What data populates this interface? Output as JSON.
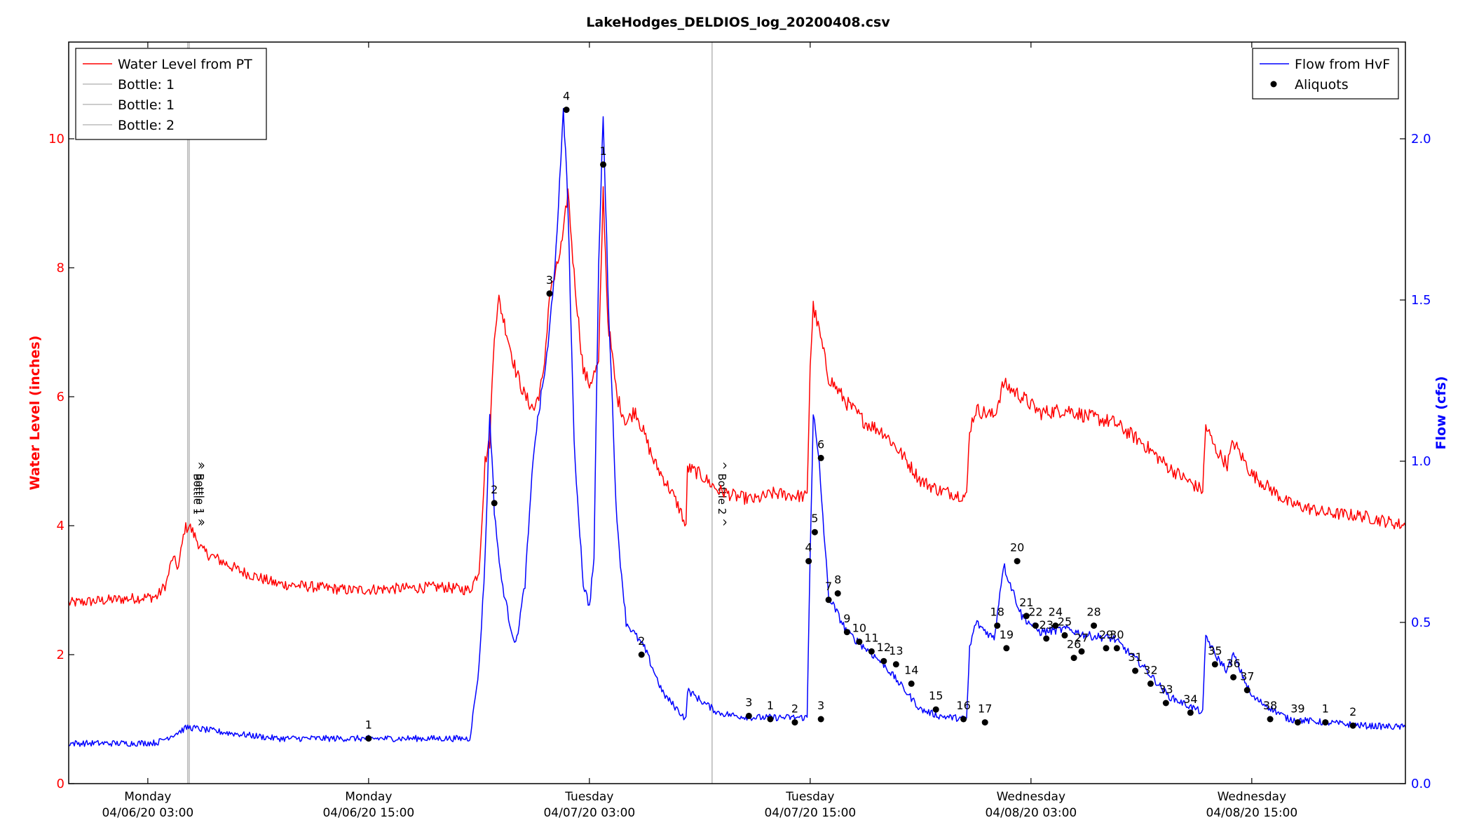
{
  "chart_data": {
    "type": "line",
    "title": "LakeHodges_DELDIOS_log_20200408.csv",
    "x_axis": {
      "range": [
        "04/05/20 22:42",
        "04/08/20 23:21"
      ],
      "ticks": [
        {
          "t": "04/06/20 03:00",
          "day": "Monday",
          "date": "04/06/20 03:00"
        },
        {
          "t": "04/06/20 15:00",
          "day": "Monday",
          "date": "04/06/20 15:00"
        },
        {
          "t": "04/07/20 03:00",
          "day": "Tuesday",
          "date": "04/07/20 03:00"
        },
        {
          "t": "04/07/20 15:00",
          "day": "Tuesday",
          "date": "04/07/20 15:00"
        },
        {
          "t": "04/08/20 03:00",
          "day": "Wednesday",
          "date": "04/08/20 03:00"
        },
        {
          "t": "04/08/20 15:00",
          "day": "Wednesday",
          "date": "04/08/20 15:00"
        }
      ]
    },
    "y_left": {
      "label": "Water Level (inches)",
      "ylim": [
        0,
        11.5
      ],
      "ticks": [
        0,
        2,
        4,
        6,
        8,
        10
      ],
      "color": "#ff0000"
    },
    "y_right": {
      "label": "Flow (cfs)",
      "ylim": [
        0,
        2.3
      ],
      "ticks": [
        "0.0",
        "0.5",
        "1.0",
        "1.5",
        "2.0"
      ],
      "color": "#0000ff"
    },
    "grid": false,
    "legend_left": {
      "placement": "top-left",
      "entries": [
        {
          "label": "Water Level from PT",
          "color": "#ff0000",
          "kind": "line"
        },
        {
          "label": "Bottle: 1",
          "color": "#bbbbbb",
          "kind": "line"
        },
        {
          "label": "Bottle: 1",
          "color": "#bbbbbb",
          "kind": "line"
        },
        {
          "label": "Bottle: 2",
          "color": "#bbbbbb",
          "kind": "line"
        }
      ]
    },
    "legend_right": {
      "placement": "top-right",
      "entries": [
        {
          "label": "Flow from HvF",
          "color": "#0000ff",
          "kind": "line"
        },
        {
          "label": "Aliquots",
          "color": "#000000",
          "kind": "marker"
        }
      ]
    },
    "bottle_lines": [
      {
        "t": "04/06/20 05:10",
        "text": "^ Bottle 1 ^"
      },
      {
        "t": "04/06/20 05:15",
        "text": "^ Bottle 1 ^"
      },
      {
        "t": "04/07/20 09:40",
        "text": "^ Bottle 2 ^"
      }
    ],
    "series": [
      {
        "name": "Water Level from PT",
        "axis": "left",
        "color": "#ff0000",
        "noise": 0.09,
        "points": [
          [
            "04/05/20 22:42",
            2.8
          ],
          [
            "04/06/20 01:00",
            2.85
          ],
          [
            "04/06/20 03:30",
            2.9
          ],
          [
            "04/06/20 04:00",
            3.1
          ],
          [
            "04/06/20 04:20",
            3.5
          ],
          [
            "04/06/20 04:40",
            3.35
          ],
          [
            "04/06/20 05:00",
            3.95
          ],
          [
            "04/06/20 05:15",
            4.0
          ],
          [
            "04/06/20 06:00",
            3.6
          ],
          [
            "04/06/20 08:00",
            3.3
          ],
          [
            "04/06/20 10:00",
            3.1
          ],
          [
            "04/06/20 14:00",
            3.0
          ],
          [
            "04/06/20 19:00",
            3.05
          ],
          [
            "04/06/20 20:30",
            3.0
          ],
          [
            "04/06/20 21:00",
            3.3
          ],
          [
            "04/06/20 21:20",
            5.0
          ],
          [
            "04/06/20 21:35",
            5.3
          ],
          [
            "04/06/20 21:50",
            7.0
          ],
          [
            "04/06/20 22:05",
            7.5
          ],
          [
            "04/06/20 22:30",
            7.0
          ],
          [
            "04/06/20 23:00",
            6.4
          ],
          [
            "04/06/20 23:30",
            6.0
          ],
          [
            "04/07/20 00:00",
            5.8
          ],
          [
            "04/07/20 00:30",
            6.3
          ],
          [
            "04/07/20 00:50",
            7.6
          ],
          [
            "04/07/20 01:10",
            7.9
          ],
          [
            "04/07/20 01:35",
            8.5
          ],
          [
            "04/07/20 01:50",
            9.2
          ],
          [
            "04/07/20 02:10",
            7.9
          ],
          [
            "04/07/20 02:40",
            6.4
          ],
          [
            "04/07/20 03:00",
            6.2
          ],
          [
            "04/07/20 03:30",
            6.5
          ],
          [
            "04/07/20 03:45",
            9.2
          ],
          [
            "04/07/20 04:00",
            7.2
          ],
          [
            "04/07/20 04:30",
            6.0
          ],
          [
            "04/07/20 05:00",
            5.6
          ],
          [
            "04/07/20 05:30",
            5.8
          ],
          [
            "04/07/20 06:00",
            5.4
          ],
          [
            "04/07/20 06:30",
            5.0
          ],
          [
            "04/07/20 07:30",
            4.5
          ],
          [
            "04/07/20 08:00",
            4.2
          ],
          [
            "04/07/20 08:15",
            3.95
          ],
          [
            "04/07/20 08:20",
            4.9
          ],
          [
            "04/07/20 09:00",
            4.8
          ],
          [
            "04/07/20 10:00",
            4.55
          ],
          [
            "04/07/20 11:00",
            4.45
          ],
          [
            "04/07/20 12:00",
            4.4
          ],
          [
            "04/07/20 13:00",
            4.5
          ],
          [
            "04/07/20 14:50",
            4.45
          ],
          [
            "04/07/20 15:00",
            6.5
          ],
          [
            "04/07/20 15:10",
            7.4
          ],
          [
            "04/07/20 15:30",
            7.0
          ],
          [
            "04/07/20 16:00",
            6.3
          ],
          [
            "04/07/20 17:00",
            5.9
          ],
          [
            "04/07/20 18:00",
            5.6
          ],
          [
            "04/07/20 19:00",
            5.45
          ],
          [
            "04/07/20 20:00",
            5.1
          ],
          [
            "04/07/20 21:00",
            4.7
          ],
          [
            "04/07/20 22:00",
            4.55
          ],
          [
            "04/07/20 23:30",
            4.45
          ],
          [
            "04/07/20 23:40",
            5.5
          ],
          [
            "04/08/20 00:00",
            5.8
          ],
          [
            "04/08/20 01:00",
            5.7
          ],
          [
            "04/08/20 01:30",
            6.2
          ],
          [
            "04/08/20 02:30",
            6.0
          ],
          [
            "04/08/20 03:30",
            5.75
          ],
          [
            "04/08/20 05:00",
            5.8
          ],
          [
            "04/08/20 06:00",
            5.7
          ],
          [
            "04/08/20 07:30",
            5.6
          ],
          [
            "04/08/20 09:00",
            5.3
          ],
          [
            "04/08/20 10:30",
            4.9
          ],
          [
            "04/08/20 12:00",
            4.6
          ],
          [
            "04/08/20 12:20",
            4.55
          ],
          [
            "04/08/20 12:30",
            5.55
          ],
          [
            "04/08/20 13:00",
            5.2
          ],
          [
            "04/08/20 13:40",
            4.95
          ],
          [
            "04/08/20 14:00",
            5.3
          ],
          [
            "04/08/20 15:00",
            4.8
          ],
          [
            "04/08/20 17:00",
            4.35
          ],
          [
            "04/08/20 19:00",
            4.2
          ],
          [
            "04/08/20 21:00",
            4.15
          ],
          [
            "04/08/20 23:21",
            4.0
          ]
        ]
      },
      {
        "name": "Flow from HvF",
        "axis": "right",
        "color": "#0000ff",
        "noise": 0.014,
        "points": [
          [
            "04/05/20 22:42",
            0.125
          ],
          [
            "04/06/20 02:00",
            0.125
          ],
          [
            "04/06/20 03:30",
            0.127
          ],
          [
            "04/06/20 04:30",
            0.155
          ],
          [
            "04/06/20 05:10",
            0.175
          ],
          [
            "04/06/20 07:00",
            0.16
          ],
          [
            "04/06/20 10:00",
            0.14
          ],
          [
            "04/06/20 15:00",
            0.14
          ],
          [
            "04/06/20 20:30",
            0.14
          ],
          [
            "04/06/20 20:40",
            0.21
          ],
          [
            "04/06/20 21:00",
            0.36
          ],
          [
            "04/06/20 21:20",
            0.7
          ],
          [
            "04/06/20 21:35",
            1.15
          ],
          [
            "04/06/20 21:50",
            0.85
          ],
          [
            "04/06/20 22:10",
            0.65
          ],
          [
            "04/06/20 22:40",
            0.5
          ],
          [
            "04/06/20 23:00",
            0.43
          ],
          [
            "04/06/20 23:30",
            0.62
          ],
          [
            "04/07/20 00:00",
            1.05
          ],
          [
            "04/07/20 00:45",
            1.35
          ],
          [
            "04/07/20 01:15",
            1.7
          ],
          [
            "04/07/20 01:35",
            2.1
          ],
          [
            "04/07/20 01:50",
            1.8
          ],
          [
            "04/07/20 02:10",
            1.05
          ],
          [
            "04/07/20 02:40",
            0.62
          ],
          [
            "04/07/20 03:00",
            0.55
          ],
          [
            "04/07/20 03:15",
            0.7
          ],
          [
            "04/07/20 03:30",
            1.6
          ],
          [
            "04/07/20 03:45",
            2.08
          ],
          [
            "04/07/20 04:00",
            1.55
          ],
          [
            "04/07/20 04:30",
            0.8
          ],
          [
            "04/07/20 05:00",
            0.5
          ],
          [
            "04/07/20 06:00",
            0.42
          ],
          [
            "04/07/20 07:00",
            0.28
          ],
          [
            "04/07/20 08:15",
            0.2
          ],
          [
            "04/07/20 08:20",
            0.29
          ],
          [
            "04/07/20 09:00",
            0.26
          ],
          [
            "04/07/20 10:00",
            0.22
          ],
          [
            "04/07/20 11:00",
            0.21
          ],
          [
            "04/07/20 12:00",
            0.205
          ],
          [
            "04/07/20 14:50",
            0.205
          ],
          [
            "04/07/20 15:00",
            0.72
          ],
          [
            "04/07/20 15:10",
            1.15
          ],
          [
            "04/07/20 15:30",
            0.98
          ],
          [
            "04/07/20 16:00",
            0.58
          ],
          [
            "04/07/20 17:00",
            0.47
          ],
          [
            "04/07/20 18:00",
            0.42
          ],
          [
            "04/07/20 19:00",
            0.37
          ],
          [
            "04/07/20 20:00",
            0.3
          ],
          [
            "04/07/20 21:00",
            0.23
          ],
          [
            "04/07/20 22:00",
            0.21
          ],
          [
            "04/07/20 23:30",
            0.2
          ],
          [
            "04/07/20 23:40",
            0.42
          ],
          [
            "04/08/20 00:00",
            0.5
          ],
          [
            "04/08/20 01:00",
            0.45
          ],
          [
            "04/08/20 01:30",
            0.68
          ],
          [
            "04/08/20 02:30",
            0.52
          ],
          [
            "04/08/20 03:30",
            0.47
          ],
          [
            "04/08/20 05:00",
            0.48
          ],
          [
            "04/08/20 06:00",
            0.46
          ],
          [
            "04/08/20 07:30",
            0.45
          ],
          [
            "04/08/20 09:00",
            0.37
          ],
          [
            "04/08/20 10:30",
            0.27
          ],
          [
            "04/08/20 12:00",
            0.23
          ],
          [
            "04/08/20 12:20",
            0.22
          ],
          [
            "04/08/20 12:30",
            0.46
          ],
          [
            "04/08/20 13:00",
            0.4
          ],
          [
            "04/08/20 13:40",
            0.35
          ],
          [
            "04/08/20 14:00",
            0.4
          ],
          [
            "04/08/20 15:00",
            0.27
          ],
          [
            "04/08/20 17:00",
            0.2
          ],
          [
            "04/08/20 19:00",
            0.19
          ],
          [
            "04/08/20 21:00",
            0.18
          ],
          [
            "04/08/20 23:21",
            0.175
          ]
        ]
      }
    ],
    "aliquots": {
      "name": "Aliquots",
      "axis": "right",
      "color": "#000000",
      "points": [
        {
          "label": "1",
          "t": "04/06/20 15:00",
          "flow": 0.14
        },
        {
          "label": "2",
          "t": "04/06/20 21:50",
          "flow": 0.87
        },
        {
          "label": "3",
          "t": "04/07/20 00:50",
          "flow": 1.52
        },
        {
          "label": "4",
          "t": "04/07/20 01:45",
          "flow": 2.09
        },
        {
          "label": "1",
          "t": "04/07/20 03:45",
          "flow": 1.92
        },
        {
          "label": "2",
          "t": "04/07/20 05:50",
          "flow": 0.4
        },
        {
          "label": "3",
          "t": "04/07/20 11:40",
          "flow": 0.21
        },
        {
          "label": "1",
          "t": "04/07/20 12:50",
          "flow": 0.2
        },
        {
          "label": "2",
          "t": "04/07/20 14:10",
          "flow": 0.19
        },
        {
          "label": "3",
          "t": "04/07/20 15:35",
          "flow": 0.2
        },
        {
          "label": "4",
          "t": "04/07/20 14:55",
          "flow": 0.69
        },
        {
          "label": "5",
          "t": "04/07/20 15:15",
          "flow": 0.78
        },
        {
          "label": "6",
          "t": "04/07/20 15:35",
          "flow": 1.01
        },
        {
          "label": "7",
          "t": "04/07/20 16:00",
          "flow": 0.57
        },
        {
          "label": "8",
          "t": "04/07/20 16:30",
          "flow": 0.59
        },
        {
          "label": "9",
          "t": "04/07/20 17:00",
          "flow": 0.47
        },
        {
          "label": "10",
          "t": "04/07/20 17:40",
          "flow": 0.44
        },
        {
          "label": "11",
          "t": "04/07/20 18:20",
          "flow": 0.41
        },
        {
          "label": "12",
          "t": "04/07/20 19:00",
          "flow": 0.38
        },
        {
          "label": "13",
          "t": "04/07/20 19:40",
          "flow": 0.37
        },
        {
          "label": "14",
          "t": "04/07/20 20:30",
          "flow": 0.31
        },
        {
          "label": "15",
          "t": "04/07/20 21:50",
          "flow": 0.23
        },
        {
          "label": "16",
          "t": "04/07/20 23:20",
          "flow": 0.2
        },
        {
          "label": "17",
          "t": "04/08/20 00:30",
          "flow": 0.19
        },
        {
          "label": "18",
          "t": "04/08/20 01:10",
          "flow": 0.49
        },
        {
          "label": "19",
          "t": "04/08/20 01:40",
          "flow": 0.42
        },
        {
          "label": "20",
          "t": "04/08/20 02:15",
          "flow": 0.69
        },
        {
          "label": "21",
          "t": "04/08/20 02:45",
          "flow": 0.52
        },
        {
          "label": "22",
          "t": "04/08/20 03:15",
          "flow": 0.49
        },
        {
          "label": "23",
          "t": "04/08/20 03:50",
          "flow": 0.45
        },
        {
          "label": "24",
          "t": "04/08/20 04:20",
          "flow": 0.49
        },
        {
          "label": "25",
          "t": "04/08/20 04:50",
          "flow": 0.46
        },
        {
          "label": "26",
          "t": "04/08/20 05:20",
          "flow": 0.39
        },
        {
          "label": "27",
          "t": "04/08/20 05:45",
          "flow": 0.41
        },
        {
          "label": "28",
          "t": "04/08/20 06:25",
          "flow": 0.49
        },
        {
          "label": "29",
          "t": "04/08/20 07:05",
          "flow": 0.42
        },
        {
          "label": "30",
          "t": "04/08/20 07:40",
          "flow": 0.42
        },
        {
          "label": "31",
          "t": "04/08/20 08:40",
          "flow": 0.35
        },
        {
          "label": "32",
          "t": "04/08/20 09:30",
          "flow": 0.31
        },
        {
          "label": "33",
          "t": "04/08/20 10:20",
          "flow": 0.25
        },
        {
          "label": "34",
          "t": "04/08/20 11:40",
          "flow": 0.22
        },
        {
          "label": "35",
          "t": "04/08/20 13:00",
          "flow": 0.37
        },
        {
          "label": "36",
          "t": "04/08/20 14:00",
          "flow": 0.33
        },
        {
          "label": "37",
          "t": "04/08/20 14:45",
          "flow": 0.29
        },
        {
          "label": "38",
          "t": "04/08/20 16:00",
          "flow": 0.2
        },
        {
          "label": "39",
          "t": "04/08/20 17:30",
          "flow": 0.19
        },
        {
          "label": "1",
          "t": "04/08/20 19:00",
          "flow": 0.19
        },
        {
          "label": "2",
          "t": "04/08/20 20:30",
          "flow": 0.18
        }
      ]
    }
  }
}
